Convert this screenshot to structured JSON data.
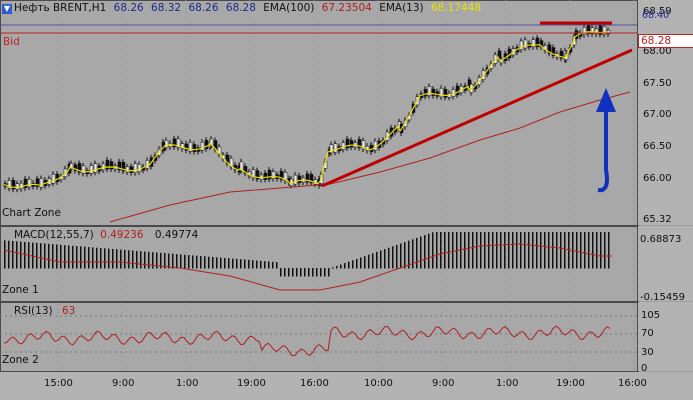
{
  "header": {
    "symbol": "Нефть BRENT,H1",
    "o": "68.26",
    "h": "68.32",
    "l": "68.26",
    "c": "68.28",
    "ema100_label": "EMA(100)",
    "ema100_value": "67.23504",
    "ema13_label": "EMA(13)",
    "ema13_value": "68.17448"
  },
  "main": {
    "bid_label": "Bid",
    "zone_label": "Chart Zone",
    "price_ticks": [
      "68.59",
      "68.00",
      "67.50",
      "67.00",
      "66.50",
      "66.00",
      "65.32"
    ],
    "high_tag": "68.40",
    "current_tag": "68.28"
  },
  "macd": {
    "label": "MACD(12,55,7)",
    "v1": "0.49236",
    "v2": "0.49774",
    "zone_label": "Zone 1",
    "ticks": [
      "0.68873",
      "-0.15459"
    ]
  },
  "rsi": {
    "label": "RSI(13)",
    "value": "63",
    "zone_label": "Zone 2",
    "ticks": [
      "105",
      "70",
      "30",
      "0"
    ]
  },
  "time_ticks": [
    "15:00",
    "9:00",
    "1:00",
    "19:00",
    "16:00",
    "10:00",
    "9:00",
    "1:00",
    "19:00",
    "16:00"
  ],
  "colors": {
    "background": "#a8a8a8",
    "candle_up": "#e8e8e8",
    "candle_down": "#111111",
    "ema13": "#f0e000",
    "ema100": "#b02020",
    "trendline": "#c00000",
    "arrow": "#1030c0",
    "bid_line": "#c02020"
  }
}
